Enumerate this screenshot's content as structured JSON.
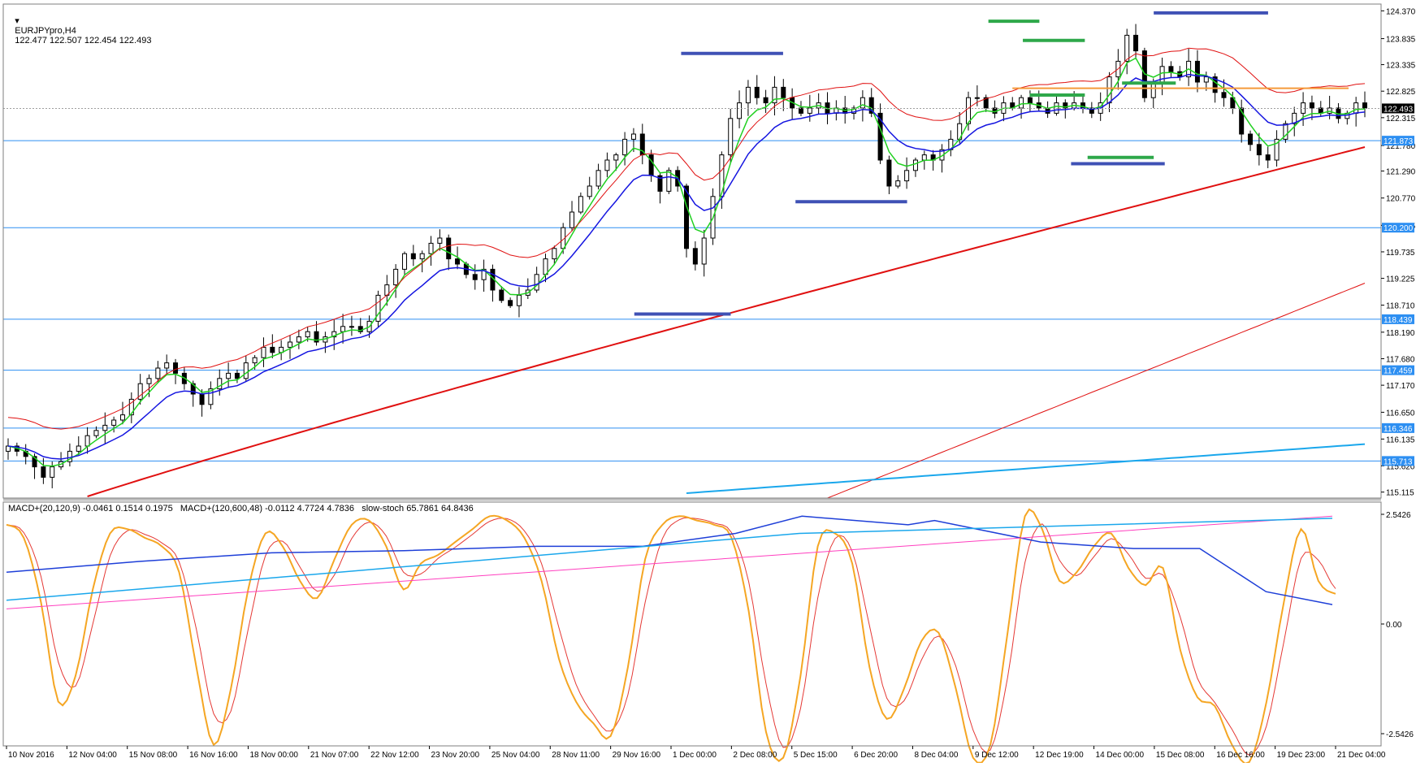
{
  "chart_data": {
    "type": "candlestick",
    "symbol": "EURJPYpro,H4",
    "ohlc": "122.477 122.507 122.454 122.493",
    "price_ticks": [
      "124.370",
      "123.835",
      "123.335",
      "122.825",
      "122.315",
      "121.780",
      "121.290",
      "120.770",
      "120.245",
      "119.735",
      "119.225",
      "118.710",
      "118.190",
      "117.680",
      "117.170",
      "116.650",
      "116.135",
      "115.620",
      "115.115"
    ],
    "price_range": [
      115.0,
      124.5
    ],
    "current_price": "122.493",
    "levels": [
      {
        "label": "121.873",
        "value": 121.873
      },
      {
        "label": "120.200",
        "value": 120.2
      },
      {
        "label": "118.439",
        "value": 118.439
      },
      {
        "label": "117.459",
        "value": 117.459
      },
      {
        "label": "116.346",
        "value": 116.346
      },
      {
        "label": "115.713",
        "value": 115.713
      }
    ],
    "resistance_level": 122.88,
    "time_labels": [
      "10 Nov 2016",
      "12 Nov 04:00",
      "15 Nov 08:00",
      "16 Nov 16:00",
      "18 Nov 00:00",
      "21 Nov 07:00",
      "22 Nov 12:00",
      "23 Nov 20:00",
      "25 Nov 04:00",
      "28 Nov 11:00",
      "29 Nov 16:00",
      "1 Dec 00:00",
      "2 Dec 08:00",
      "5 Dec 15:00",
      "6 Dec 20:00",
      "8 Dec 04:00",
      "9 Dec 12:00",
      "12 Dec 19:00",
      "14 Dec 00:00",
      "15 Dec 08:00",
      "16 Dec 16:00",
      "19 Dec 23:00",
      "21 Dec 04:00"
    ],
    "close_path": [
      116.0,
      115.9,
      115.8,
      115.6,
      115.4,
      115.6,
      115.7,
      115.9,
      116.0,
      116.2,
      116.3,
      116.4,
      116.5,
      116.6,
      116.9,
      117.2,
      117.3,
      117.5,
      117.6,
      117.4,
      117.2,
      117.0,
      116.8,
      117.1,
      117.3,
      117.4,
      117.3,
      117.6,
      117.7,
      117.9,
      117.8,
      117.9,
      118.0,
      118.1,
      118.2,
      118.0,
      118.1,
      118.2,
      118.3,
      118.3,
      118.2,
      118.4,
      118.9,
      119.1,
      119.4,
      119.7,
      119.6,
      119.7,
      119.9,
      120.0,
      119.6,
      119.5,
      119.3,
      119.2,
      119.4,
      119.0,
      118.8,
      118.7,
      118.9,
      119.0,
      119.3,
      119.6,
      119.8,
      120.2,
      120.5,
      120.8,
      121.0,
      121.3,
      121.5,
      121.6,
      121.9,
      122.0,
      121.6,
      121.2,
      120.9,
      121.3,
      121.0,
      119.8,
      119.5,
      120.0,
      120.8,
      121.6,
      122.3,
      122.6,
      122.9,
      122.7,
      122.6,
      122.9,
      122.7,
      122.5,
      122.4,
      122.5,
      122.6,
      122.4,
      122.5,
      122.4,
      122.5,
      122.7,
      122.4,
      121.5,
      121.0,
      121.1,
      121.3,
      121.5,
      121.6,
      121.5,
      121.7,
      121.9,
      122.2,
      122.7,
      122.7,
      122.5,
      122.4,
      122.6,
      122.5,
      122.7,
      122.6,
      122.5,
      122.4,
      122.6,
      122.5,
      122.6,
      122.5,
      122.4,
      122.6,
      123.1,
      123.4,
      123.9,
      123.6,
      122.7,
      123.0,
      123.3,
      123.2,
      123.1,
      123.4,
      123.0,
      123.1,
      122.8,
      122.7,
      122.5,
      122.0,
      121.8,
      121.6,
      121.5,
      121.9,
      122.2,
      122.4,
      122.6,
      122.5,
      122.4,
      122.5,
      122.3,
      122.4,
      122.6,
      122.5
    ],
    "sr_marks": [
      {
        "color": "#3f51b5",
        "value": 124.33,
        "from": 0.835,
        "to": 0.918
      },
      {
        "color": "#3f51b5",
        "value": 123.55,
        "from": 0.492,
        "to": 0.566
      },
      {
        "color": "#3f51b5",
        "value": 120.7,
        "from": 0.575,
        "to": 0.656
      },
      {
        "color": "#3f51b5",
        "value": 118.54,
        "from": 0.458,
        "to": 0.528
      },
      {
        "color": "#3f51b5",
        "value": 121.43,
        "from": 0.775,
        "to": 0.843
      },
      {
        "color": "#2ea84a",
        "value": 124.17,
        "from": 0.715,
        "to": 0.752
      },
      {
        "color": "#2ea84a",
        "value": 123.8,
        "from": 0.74,
        "to": 0.785
      },
      {
        "color": "#2ea84a",
        "value": 122.98,
        "from": 0.812,
        "to": 0.851
      },
      {
        "color": "#2ea84a",
        "value": 122.75,
        "from": 0.745,
        "to": 0.785
      },
      {
        "color": "#2ea84a",
        "value": 121.55,
        "from": 0.787,
        "to": 0.835
      }
    ],
    "osc_legend": "MACD+(20,120,9) -0.0461 0.1514 0.1975   MACD+(120,600,48) -0.0112 4.7724 4.7836   slow-stoch 65.7861 64.8436",
    "osc_ticks": [
      "2.5426",
      "0.00",
      "-2.5426"
    ],
    "stoch": [
      2.3,
      2.0,
      0.5,
      -1.8,
      -1.2,
      0.8,
      2.1,
      2.2,
      2.0,
      1.8,
      1.2,
      -1.0,
      -2.8,
      -1.5,
      0.8,
      2.1,
      1.8,
      1.0,
      0.6,
      1.5,
      2.3,
      2.4,
      1.8,
      0.8,
      1.4,
      1.6,
      1.9,
      2.2,
      2.5,
      2.4,
      2.0,
      1.0,
      -0.8,
      -1.8,
      -2.3,
      -2.6,
      -1.0,
      1.5,
      2.3,
      2.5,
      2.4,
      2.3,
      2.0,
      0.3,
      -2.5,
      -3.1,
      -1.2,
      1.8,
      2.1,
      1.4,
      -1.0,
      -2.2,
      -1.5,
      -0.4,
      -0.2,
      -1.5,
      -3.1,
      -2.8,
      -0.2,
      2.5,
      2.2,
      1.0,
      1.2,
      1.8,
      2.1,
      1.3,
      0.9,
      1.3,
      -0.6,
      -1.7,
      -1.9,
      -2.8,
      -3.2,
      -1.8,
      0.5,
      2.2,
      1.0,
      0.7
    ]
  },
  "colors": {
    "frame": "#7f7f7f",
    "level": "#2d8ff2",
    "resistance": "#f59a3a",
    "ema_fast": "#20d020",
    "ema_slow": "#1515e0",
    "ma_long": "#e01010",
    "envelope": "#e01010",
    "ma_very_long": "#1aa7ec"
  }
}
